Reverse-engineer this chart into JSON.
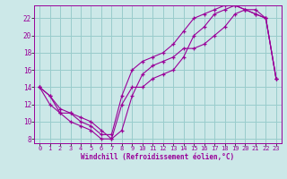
{
  "xlabel": "Windchill (Refroidissement éolien,°C)",
  "bg_color": "#cce8e8",
  "line_color": "#990099",
  "grid_color": "#99cccc",
  "xlim": [
    -0.5,
    23.5
  ],
  "ylim": [
    7.5,
    23.5
  ],
  "xticks": [
    0,
    1,
    2,
    3,
    4,
    5,
    6,
    7,
    8,
    9,
    10,
    11,
    12,
    13,
    14,
    15,
    16,
    17,
    18,
    19,
    20,
    21,
    22,
    23
  ],
  "yticks": [
    8,
    10,
    12,
    14,
    16,
    18,
    20,
    22
  ],
  "series": [
    {
      "x": [
        0,
        1,
        2,
        3,
        4,
        5,
        6,
        7,
        8,
        9,
        10,
        11,
        12,
        13,
        14,
        15,
        16,
        17,
        18,
        19,
        20,
        21,
        22,
        23
      ],
      "y": [
        14,
        13,
        11,
        10,
        9.5,
        9,
        8,
        8,
        9,
        13,
        15.5,
        16.5,
        17,
        17.5,
        18.5,
        18.5,
        19,
        20,
        21,
        22.5,
        23,
        23,
        22,
        15
      ]
    },
    {
      "x": [
        0,
        1,
        2,
        3,
        4,
        5,
        6,
        7,
        8,
        9,
        10,
        11,
        12,
        13,
        14,
        15,
        16,
        17,
        18,
        19,
        20,
        21,
        22,
        23
      ],
      "y": [
        14,
        13,
        11.5,
        11,
        10,
        9.5,
        8.5,
        8.5,
        13,
        16,
        17,
        17.5,
        18,
        19,
        20.5,
        22,
        22.5,
        23,
        23.5,
        23.5,
        23,
        22.5,
        22,
        15
      ]
    },
    {
      "x": [
        0,
        1,
        2,
        3,
        4,
        5,
        6,
        7,
        8,
        9,
        10,
        11,
        12,
        13,
        14,
        15,
        16,
        17,
        18,
        19,
        20,
        21,
        22,
        23
      ],
      "y": [
        14,
        12,
        11,
        11,
        10.5,
        10,
        9,
        8,
        12,
        14,
        14,
        15,
        15.5,
        16,
        17.5,
        20,
        21,
        22.5,
        23,
        23.5,
        23,
        22.5,
        22,
        15
      ]
    }
  ]
}
